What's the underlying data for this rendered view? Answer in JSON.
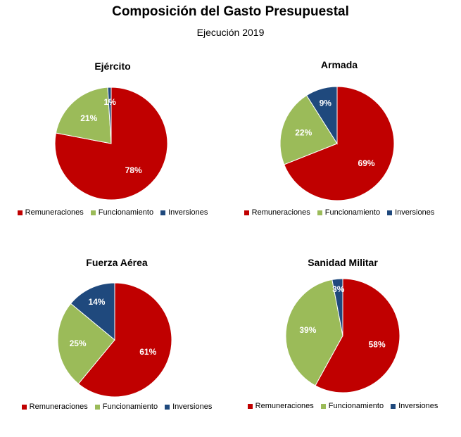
{
  "header": {
    "title": "Composición del Gasto Presupuestal",
    "subtitle": "Ejecución 2019"
  },
  "colors": {
    "remuneraciones": "#C00000",
    "funcionamiento": "#9BBB59",
    "inversiones": "#1F497D"
  },
  "chart_data": [
    {
      "type": "pie",
      "title": "Ejército",
      "categories": [
        "Remuneraciones",
        "Funcionamiento",
        "Inversiones"
      ],
      "values": [
        78,
        21,
        1
      ],
      "labels": [
        "78%",
        "21%",
        "1%"
      ],
      "legend": "bottom"
    },
    {
      "type": "pie",
      "title": "Armada",
      "categories": [
        "Remuneraciones",
        "Funcionamiento",
        "Inversiones"
      ],
      "values": [
        69,
        22,
        9
      ],
      "labels": [
        "69%",
        "22%",
        "9%"
      ],
      "legend": "bottom"
    },
    {
      "type": "pie",
      "title": "Fuerza Aérea",
      "categories": [
        "Remuneraciones",
        "Funcionamiento",
        "Inversiones"
      ],
      "values": [
        61,
        25,
        14
      ],
      "labels": [
        "61%",
        "25%",
        "14%"
      ],
      "legend": "bottom"
    },
    {
      "type": "pie",
      "title": "Sanidad Militar",
      "categories": [
        "Remuneraciones",
        "Funcionamiento",
        "Inversiones"
      ],
      "values": [
        58,
        39,
        3
      ],
      "labels": [
        "58%",
        "39%",
        "3%"
      ],
      "legend": "bottom"
    }
  ]
}
